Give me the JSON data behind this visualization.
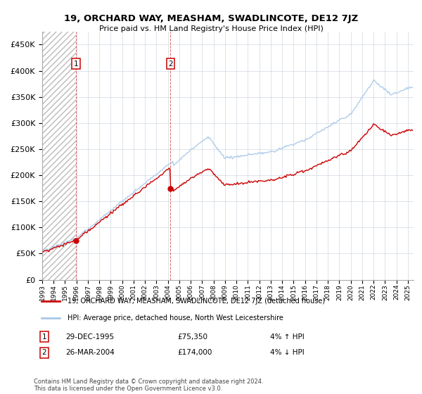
{
  "title": "19, ORCHARD WAY, MEASHAM, SWADLINCOTE, DE12 7JZ",
  "subtitle": "Price paid vs. HM Land Registry's House Price Index (HPI)",
  "legend_line1": "19, ORCHARD WAY, MEASHAM, SWADLINCOTE, DE12 7JZ (detached house)",
  "legend_line2": "HPI: Average price, detached house, North West Leicestershire",
  "annotation1_label": "1",
  "annotation1_date": "29-DEC-1995",
  "annotation1_price": "£75,350",
  "annotation1_hpi": "4% ↑ HPI",
  "annotation2_label": "2",
  "annotation2_date": "26-MAR-2004",
  "annotation2_price": "£174,000",
  "annotation2_hpi": "4% ↓ HPI",
  "footnote": "Contains HM Land Registry data © Crown copyright and database right 2024.\nThis data is licensed under the Open Government Licence v3.0.",
  "hpi_color": "#a8c8e8",
  "sale_color": "#cc0000",
  "marker_color": "#cc0000",
  "grid_color": "#d0d8e0",
  "ylim": [
    0,
    475000
  ],
  "yticks": [
    0,
    50000,
    100000,
    150000,
    200000,
    250000,
    300000,
    350000,
    400000,
    450000
  ],
  "sale1_year": 1995.97,
  "sale1_price": 75350,
  "sale2_year": 2004.23,
  "sale2_price": 174000,
  "xmin": 1993,
  "xmax": 2025.5
}
